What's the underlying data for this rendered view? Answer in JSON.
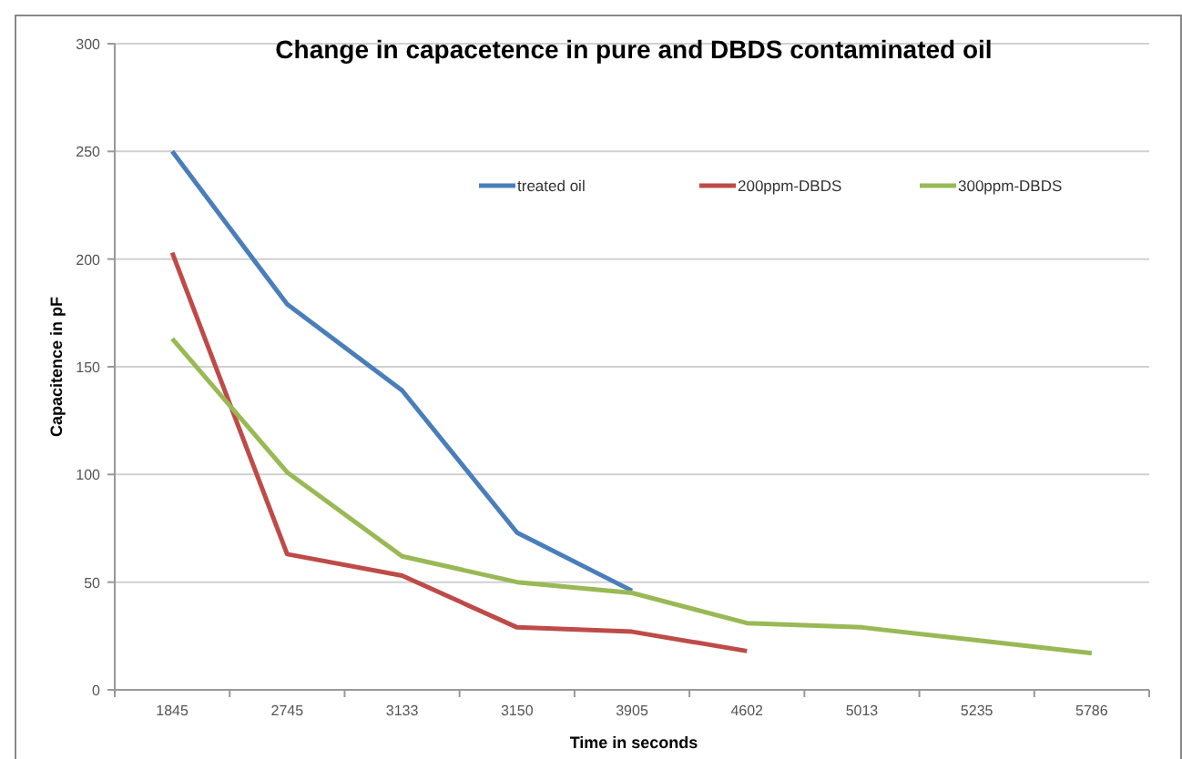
{
  "chart_data": {
    "type": "line",
    "title": "Change in capacetence in pure and DBDS contaminated oil",
    "xlabel": "Time in seconds",
    "ylabel": "Capacitence in pF",
    "categories": [
      "1845",
      "2745",
      "3133",
      "3150",
      "3905",
      "4602",
      "5013",
      "5235",
      "5786"
    ],
    "series": [
      {
        "name": "treated oil",
        "color": "#4a7ebb",
        "values": [
          250,
          179,
          139,
          73,
          46,
          null,
          null,
          null,
          null
        ]
      },
      {
        "name": "200ppm-DBDS",
        "color": "#be4b48",
        "values": [
          203,
          63,
          53,
          29,
          27,
          18,
          null,
          null,
          null
        ]
      },
      {
        "name": "300ppm-DBDS",
        "color": "#98b954",
        "values": [
          163,
          101,
          62,
          50,
          45,
          31,
          29,
          23,
          17
        ]
      }
    ],
    "ylim": [
      0,
      300
    ],
    "yticks": [
      0,
      50,
      100,
      150,
      200,
      250,
      300
    ],
    "grid": "y",
    "legend": "top right",
    "marker": "none",
    "line_style": "solid"
  }
}
